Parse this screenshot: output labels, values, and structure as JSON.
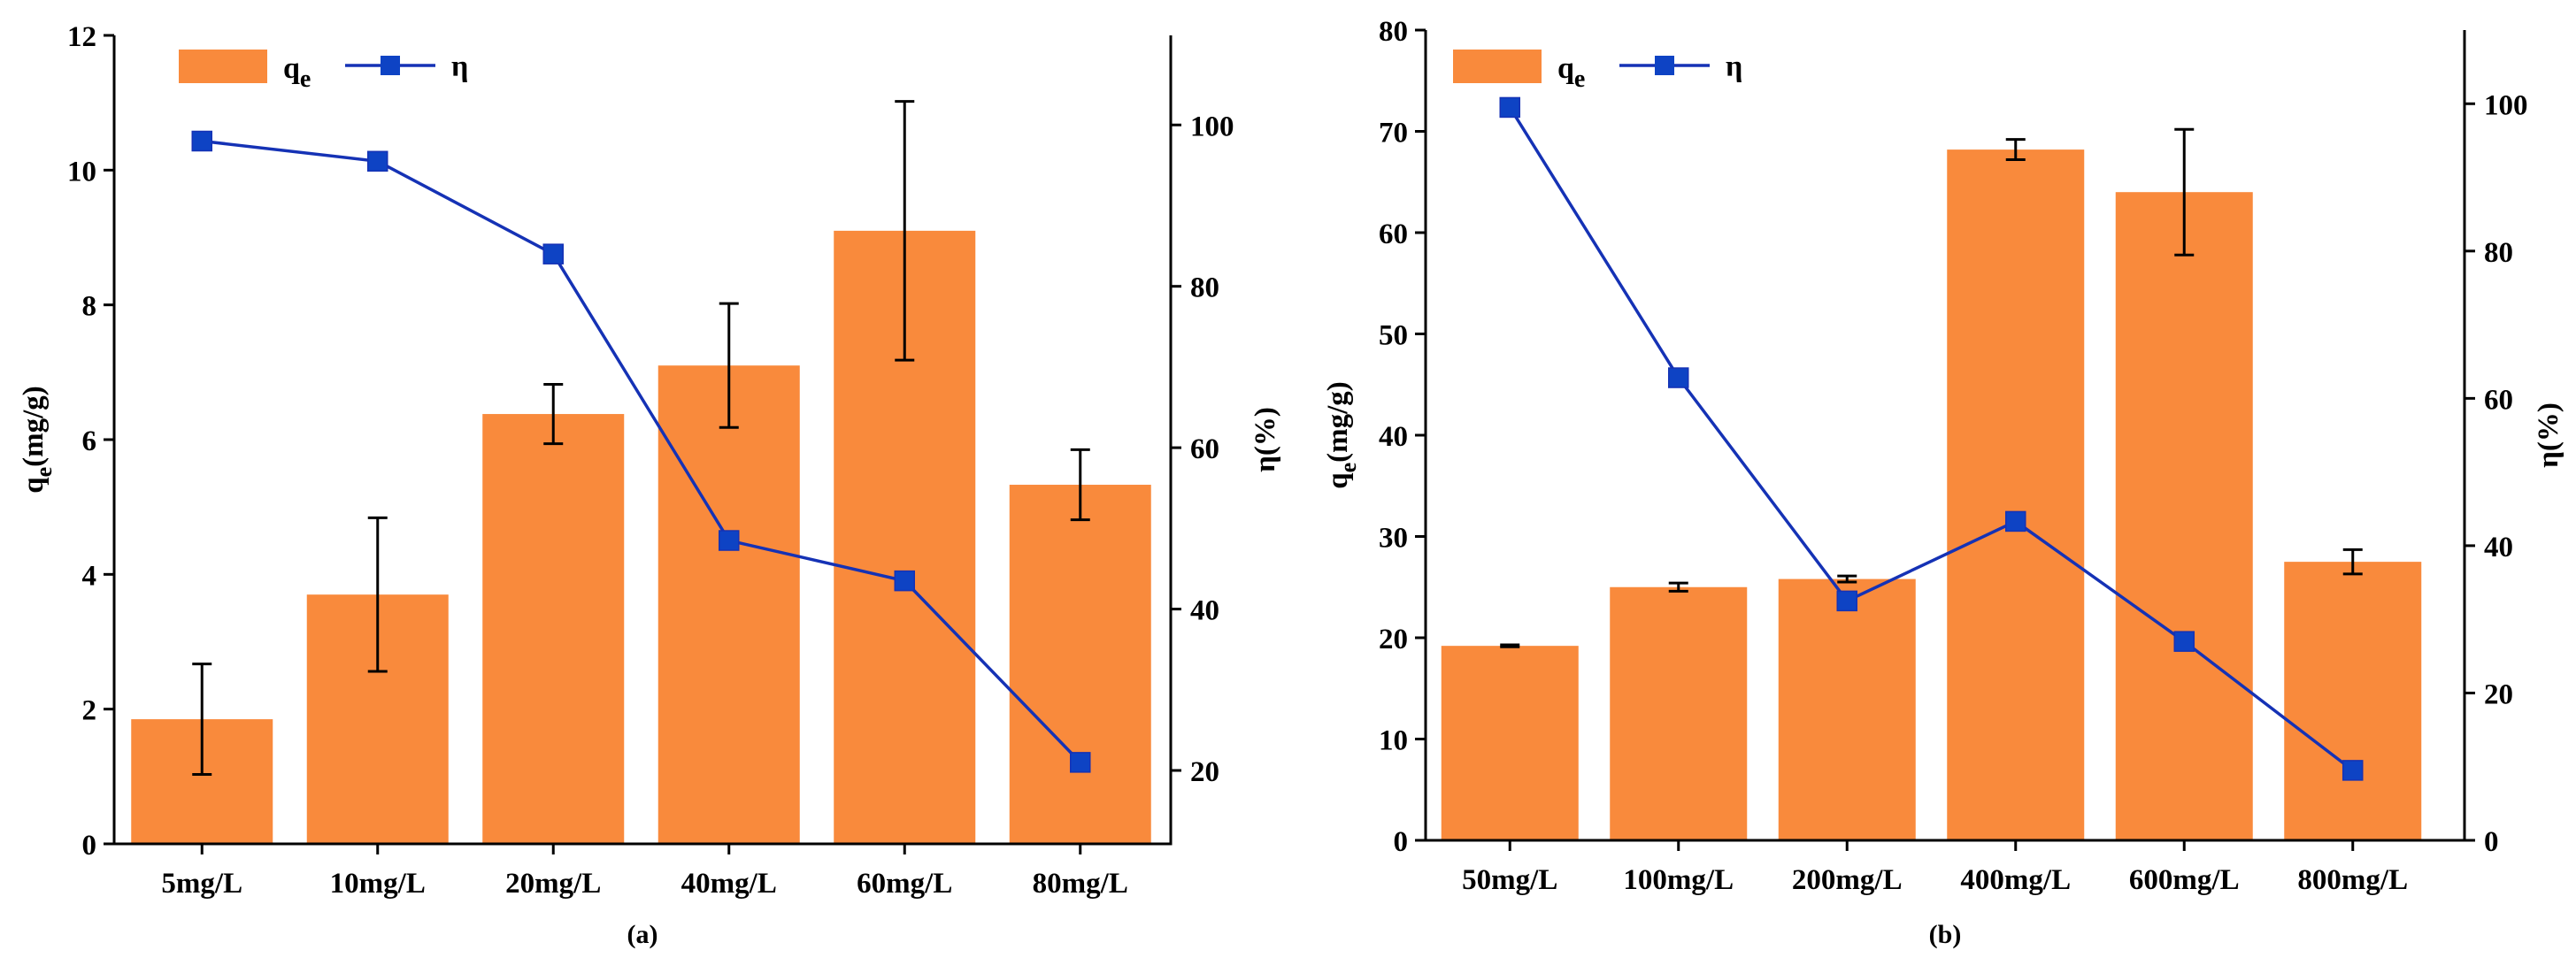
{
  "chart_data": [
    {
      "panel_label": "(a)",
      "type": "bar+line",
      "categories": [
        "5mg/L",
        "10mg/L",
        "20mg/L",
        "40mg/L",
        "60mg/L",
        "80mg/L"
      ],
      "series": [
        {
          "name": "qe",
          "type": "bar",
          "axis": "left",
          "color": "#F98A3C",
          "values": [
            1.85,
            3.7,
            6.38,
            7.1,
            9.1,
            5.33
          ],
          "errors": [
            0.82,
            1.14,
            0.44,
            0.92,
            1.92,
            0.52
          ]
        },
        {
          "name": "η",
          "type": "line",
          "axis": "right",
          "color": "#1532B5",
          "marker_color": "#0E43C4",
          "values": [
            98,
            95.5,
            84,
            48.5,
            43.5,
            21
          ]
        }
      ],
      "legend": {
        "bar_main": "q",
        "bar_sub": "e",
        "line": "η",
        "position": "top-left"
      },
      "ylabel_left": {
        "main": "q",
        "sub": "e",
        "rest": "(mg/g)"
      },
      "ylabel_right": "η(%)",
      "ylim_left": [
        0,
        12
      ],
      "yticks_left": [
        0,
        2,
        4,
        6,
        8,
        10,
        12
      ],
      "ylim_right": [
        10.9,
        111.1
      ],
      "yticks_right": [
        20,
        40,
        60,
        80,
        100
      ]
    },
    {
      "panel_label": "(b)",
      "type": "bar+line",
      "categories": [
        "50mg/L",
        "100mg/L",
        "200mg/L",
        "400mg/L",
        "600mg/L",
        "800mg/L"
      ],
      "series": [
        {
          "name": "qe",
          "type": "bar",
          "axis": "left",
          "color": "#F98A3C",
          "values": [
            19.2,
            25,
            25.8,
            68.2,
            64,
            27.5
          ],
          "errors": [
            0.1,
            0.4,
            0.3,
            1.0,
            6.2,
            1.2
          ]
        },
        {
          "name": "η",
          "type": "line",
          "axis": "right",
          "color": "#1532B5",
          "marker_color": "#0E43C4",
          "values": [
            99.5,
            62.8,
            32.5,
            43.3,
            27,
            9.5
          ]
        }
      ],
      "legend": {
        "bar_main": "q",
        "bar_sub": "e",
        "line": "η",
        "position": "top-left"
      },
      "ylabel_left": {
        "main": "q",
        "sub": "e",
        "rest": "(mg/g)"
      },
      "ylabel_right": "η(%)",
      "ylim_left": [
        0,
        80
      ],
      "yticks_left": [
        0,
        10,
        20,
        30,
        40,
        50,
        60,
        70,
        80
      ],
      "ylim_right": [
        0,
        110
      ],
      "yticks_right": [
        0,
        20,
        40,
        60,
        80,
        100
      ]
    }
  ]
}
